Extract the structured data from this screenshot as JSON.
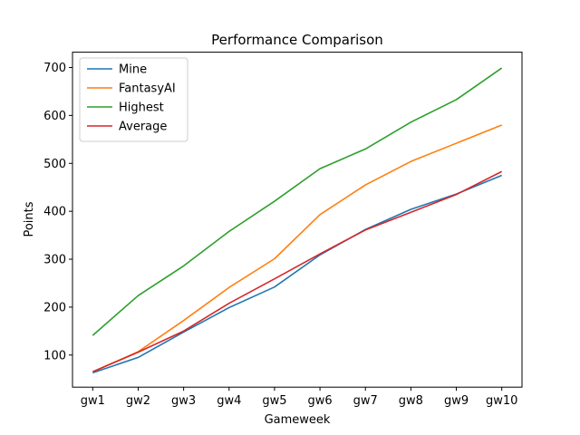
{
  "chart_data": {
    "type": "line",
    "title": "Performance Comparison",
    "xlabel": "Gameweek",
    "ylabel": "Points",
    "categories": [
      "gw1",
      "gw2",
      "gw3",
      "gw4",
      "gw5",
      "gw6",
      "gw7",
      "gw8",
      "gw9",
      "gw10"
    ],
    "ylim": [
      33,
      732
    ],
    "yticks": [
      100,
      200,
      300,
      400,
      500,
      600,
      700
    ],
    "grid": false,
    "legend_position": "upper-left",
    "series": [
      {
        "name": "Mine",
        "color": "#1f77b4",
        "values": [
          63,
          95,
          148,
          199,
          242,
          309,
          362,
          404,
          436,
          475
        ]
      },
      {
        "name": "FantasyAI",
        "color": "#ff7f0e",
        "values": [
          65,
          107,
          172,
          241,
          301,
          393,
          455,
          504,
          542,
          580
        ]
      },
      {
        "name": "Highest",
        "color": "#2ca02c",
        "values": [
          141,
          224,
          286,
          358,
          421,
          489,
          530,
          586,
          633,
          699
        ]
      },
      {
        "name": "Average",
        "color": "#d62728",
        "values": [
          65,
          106,
          150,
          208,
          259,
          311,
          361,
          398,
          435,
          483
        ]
      }
    ]
  }
}
